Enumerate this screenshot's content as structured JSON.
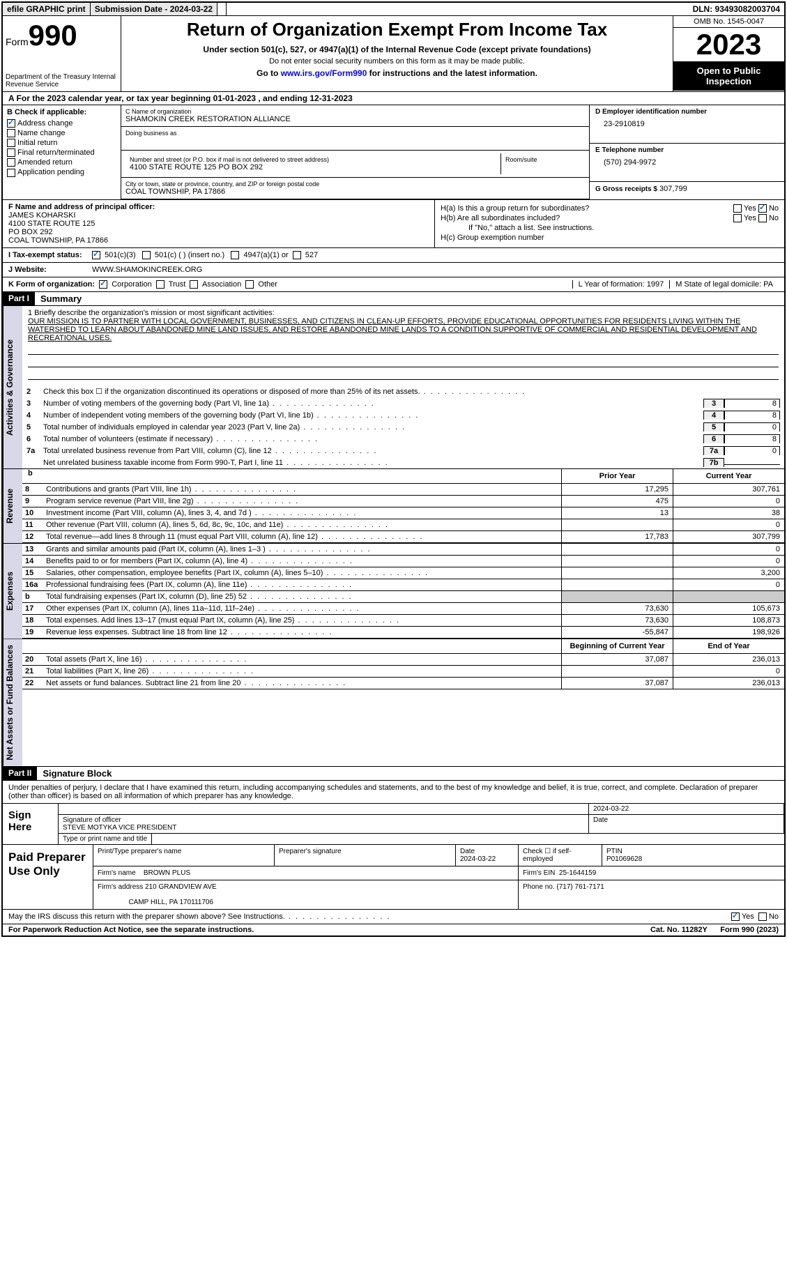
{
  "topbar": {
    "efile": "efile GRAPHIC print",
    "submission": "Submission Date - 2024-03-22",
    "dln": "DLN: 93493082003704"
  },
  "header": {
    "form_prefix": "Form",
    "form_num": "990",
    "dept": "Department of the Treasury\nInternal Revenue Service",
    "title": "Return of Organization Exempt From Income Tax",
    "sub": "Under section 501(c), 527, or 4947(a)(1) of the Internal Revenue Code (except private foundations)",
    "sub2": "Do not enter social security numbers on this form as it may be made public.",
    "go": "Go to www.irs.gov/Form990 for instructions and the latest information.",
    "go_url": "www.irs.gov/Form990",
    "omb": "OMB No. 1545-0047",
    "year": "2023",
    "inspect": "Open to Public Inspection"
  },
  "row_a": "A For the 2023 calendar year, or tax year beginning 01-01-2023    , and ending 12-31-2023",
  "col_b": {
    "label": "B Check if applicable:",
    "items": [
      "Address change",
      "Name change",
      "Initial return",
      "Final return/terminated",
      "Amended return",
      "Application pending"
    ],
    "checked": [
      true,
      false,
      false,
      false,
      false,
      false
    ]
  },
  "col_c": {
    "name_lbl": "C Name of organization",
    "name": "SHAMOKIN CREEK RESTORATION ALLIANCE",
    "dba_lbl": "Doing business as",
    "dba": "",
    "addr_lbl": "Number and street (or P.O. box if mail is not delivered to street address)",
    "addr": "4100 STATE ROUTE 125 PO BOX 292",
    "room_lbl": "Room/suite",
    "city_lbl": "City or town, state or province, country, and ZIP or foreign postal code",
    "city": "COAL TOWNSHIP, PA  17866"
  },
  "col_d": {
    "ein_lbl": "D Employer identification number",
    "ein": "23-2910819",
    "phone_lbl": "E Telephone number",
    "phone": "(570) 294-9972",
    "gross_lbl": "G Gross receipts $",
    "gross": "307,799"
  },
  "col_f": {
    "lbl": "F Name and address of principal officer:",
    "name": "JAMES KOHARSKI",
    "addr1": "4100 STATE ROUTE 125",
    "addr2": "PO BOX 292",
    "city": "COAL TOWNSHIP, PA  17866"
  },
  "col_h": {
    "ha": "H(a)  Is this a group return for subordinates?",
    "hb": "H(b)  Are all subordinates included?",
    "hb_note": "If \"No,\" attach a list. See instructions.",
    "hc": "H(c)  Group exemption number"
  },
  "tax": {
    "lbl": "I   Tax-exempt status:",
    "opts": [
      "501(c)(3)",
      "501(c) (  ) (insert no.)",
      "4947(a)(1) or",
      "527"
    ]
  },
  "web": {
    "lbl": "J  Website:",
    "val": "WWW.SHAMOKINCREEK.ORG"
  },
  "kform": {
    "k": "K Form of organization:",
    "opts": [
      "Corporation",
      "Trust",
      "Association",
      "Other"
    ],
    "l": "L Year of formation: 1997",
    "m": "M State of legal domicile: PA"
  },
  "part1": {
    "hdr": "Part I",
    "title": "Summary"
  },
  "mission": {
    "lbl": "1   Briefly describe the organization's mission or most significant activities:",
    "txt": "OUR MISSION IS TO PARTNER WITH LOCAL GOVERNMENT, BUSINESSES, AND CITIZENS IN CLEAN-UP EFFORTS, PROVIDE EDUCATIONAL OPPORTUNITIES FOR RESIDENTS LIVING WITHIN THE WATERSHED TO LEARN ABOUT ABANDONED MINE LAND ISSUES, AND RESTORE ABANDONED MINE LANDS TO A CONDITION SUPPORTIVE OF COMMERCIAL AND RESIDENTIAL DEVELOPMENT AND RECREATIONAL USES."
  },
  "gov_lines": [
    {
      "n": "2",
      "t": "Check this box ☐ if the organization discontinued its operations or disposed of more than 25% of its net assets.",
      "b": "",
      "v": ""
    },
    {
      "n": "3",
      "t": "Number of voting members of the governing body (Part VI, line 1a)",
      "b": "3",
      "v": "8"
    },
    {
      "n": "4",
      "t": "Number of independent voting members of the governing body (Part VI, line 1b)",
      "b": "4",
      "v": "8"
    },
    {
      "n": "5",
      "t": "Total number of individuals employed in calendar year 2023 (Part V, line 2a)",
      "b": "5",
      "v": "0"
    },
    {
      "n": "6",
      "t": "Total number of volunteers (estimate if necessary)",
      "b": "6",
      "v": "8"
    },
    {
      "n": "7a",
      "t": "Total unrelated business revenue from Part VIII, column (C), line 12",
      "b": "7a",
      "v": "0"
    },
    {
      "n": "",
      "t": "Net unrelated business taxable income from Form 990-T, Part I, line 11",
      "b": "7b",
      "v": ""
    }
  ],
  "rev_hdr": {
    "b": "b",
    "py": "Prior Year",
    "cy": "Current Year"
  },
  "vtabs": {
    "gov": "Activities & Governance",
    "rev": "Revenue",
    "exp": "Expenses",
    "net": "Net Assets or Fund Balances"
  },
  "rev_lines": [
    {
      "n": "8",
      "t": "Contributions and grants (Part VIII, line 1h)",
      "py": "17,295",
      "cy": "307,761"
    },
    {
      "n": "9",
      "t": "Program service revenue (Part VIII, line 2g)",
      "py": "475",
      "cy": "0"
    },
    {
      "n": "10",
      "t": "Investment income (Part VIII, column (A), lines 3, 4, and 7d )",
      "py": "13",
      "cy": "38"
    },
    {
      "n": "11",
      "t": "Other revenue (Part VIII, column (A), lines 5, 6d, 8c, 9c, 10c, and 11e)",
      "py": "",
      "cy": "0"
    },
    {
      "n": "12",
      "t": "Total revenue—add lines 8 through 11 (must equal Part VIII, column (A), line 12)",
      "py": "17,783",
      "cy": "307,799"
    }
  ],
  "exp_lines": [
    {
      "n": "13",
      "t": "Grants and similar amounts paid (Part IX, column (A), lines 1–3 )",
      "py": "",
      "cy": "0"
    },
    {
      "n": "14",
      "t": "Benefits paid to or for members (Part IX, column (A), line 4)",
      "py": "",
      "cy": "0"
    },
    {
      "n": "15",
      "t": "Salaries, other compensation, employee benefits (Part IX, column (A), lines 5–10)",
      "py": "",
      "cy": "3,200"
    },
    {
      "n": "16a",
      "t": "Professional fundraising fees (Part IX, column (A), line 11e)",
      "py": "",
      "cy": "0"
    },
    {
      "n": "b",
      "t": "Total fundraising expenses (Part IX, column (D), line 25) 52",
      "py": "shade",
      "cy": "shade"
    },
    {
      "n": "17",
      "t": "Other expenses (Part IX, column (A), lines 11a–11d, 11f–24e)",
      "py": "73,630",
      "cy": "105,673"
    },
    {
      "n": "18",
      "t": "Total expenses. Add lines 13–17 (must equal Part IX, column (A), line 25)",
      "py": "73,630",
      "cy": "108,873"
    },
    {
      "n": "19",
      "t": "Revenue less expenses. Subtract line 18 from line 12",
      "py": "-55,847",
      "cy": "198,926"
    }
  ],
  "net_hdr": {
    "py": "Beginning of Current Year",
    "cy": "End of Year"
  },
  "net_lines": [
    {
      "n": "20",
      "t": "Total assets (Part X, line 16)",
      "py": "37,087",
      "cy": "236,013"
    },
    {
      "n": "21",
      "t": "Total liabilities (Part X, line 26)",
      "py": "",
      "cy": "0"
    },
    {
      "n": "22",
      "t": "Net assets or fund balances. Subtract line 21 from line 20",
      "py": "37,087",
      "cy": "236,013"
    }
  ],
  "part2": {
    "hdr": "Part II",
    "title": "Signature Block"
  },
  "sig": {
    "decl": "Under penalties of perjury, I declare that I have examined this return, including accompanying schedules and statements, and to the best of my knowledge and belief, it is true, correct, and complete. Declaration of preparer (other than officer) is based on all information of which preparer has any knowledge.",
    "here": "Sign Here",
    "date": "2024-03-22",
    "sig_lbl": "Signature of officer",
    "name": "STEVE MOTYKA  VICE PRESIDENT",
    "name_lbl": "Type or print name and title",
    "date_lbl": "Date"
  },
  "prep": {
    "lbl": "Paid Preparer Use Only",
    "h1": "Print/Type preparer's name",
    "h2": "Preparer's signature",
    "h3": "Date",
    "h3v": "2024-03-22",
    "h4": "Check ☐ if self-employed",
    "h5": "PTIN",
    "h5v": "P01069628",
    "firm_lbl": "Firm's name",
    "firm": "BROWN PLUS",
    "ein_lbl": "Firm's EIN",
    "ein": "25-1644159",
    "addr_lbl": "Firm's address",
    "addr": "210 GRANDVIEW AVE",
    "city": "CAMP HILL, PA  170111706",
    "phone_lbl": "Phone no.",
    "phone": "(717) 761-7171"
  },
  "footer": {
    "discuss": "May the IRS discuss this return with the preparer shown above? See Instructions.",
    "yes": "Yes",
    "no": "No"
  },
  "last": {
    "pra": "For Paperwork Reduction Act Notice, see the separate instructions.",
    "cat": "Cat. No. 11282Y",
    "form": "Form 990 (2023)"
  }
}
